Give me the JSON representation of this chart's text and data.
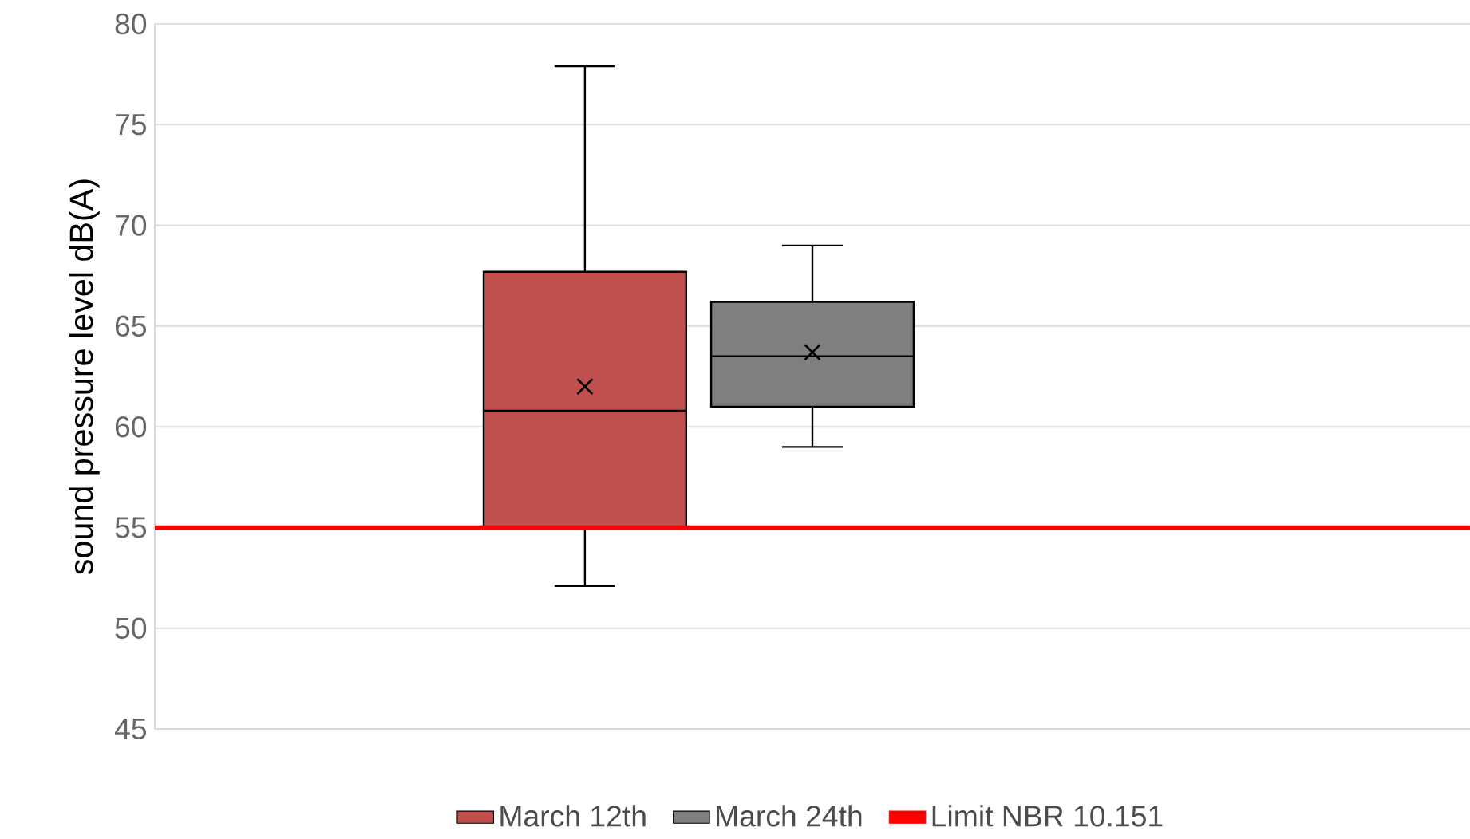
{
  "chart_data": {
    "type": "box",
    "ylabel": "sound pressure level dB(A)",
    "categories": [
      null
    ],
    "series": [
      {
        "name": "March 12th",
        "color": "#c0504d",
        "boxes": [
          {
            "low": 52.1,
            "q1": 55,
            "median": 60.8,
            "q3": 67.7,
            "high": 77.9,
            "mean": 62.0
          }
        ]
      },
      {
        "name": "March 24th",
        "color": "#7f7f7f",
        "boxes": [
          {
            "low": 59.0,
            "q1": 61.0,
            "median": 63.5,
            "q3": 66.2,
            "high": 69.0,
            "mean": 63.7
          }
        ]
      }
    ],
    "ref_lines": [
      {
        "axis": "y",
        "value": 55,
        "label": "Limit NBR 10.151",
        "color": "#ff0000"
      }
    ],
    "ylim": [
      45,
      80
    ],
    "yticks": [
      45,
      50,
      55,
      60,
      65,
      70,
      75,
      80
    ],
    "grid": "y",
    "legend": "bottom",
    "marker": "cross"
  }
}
